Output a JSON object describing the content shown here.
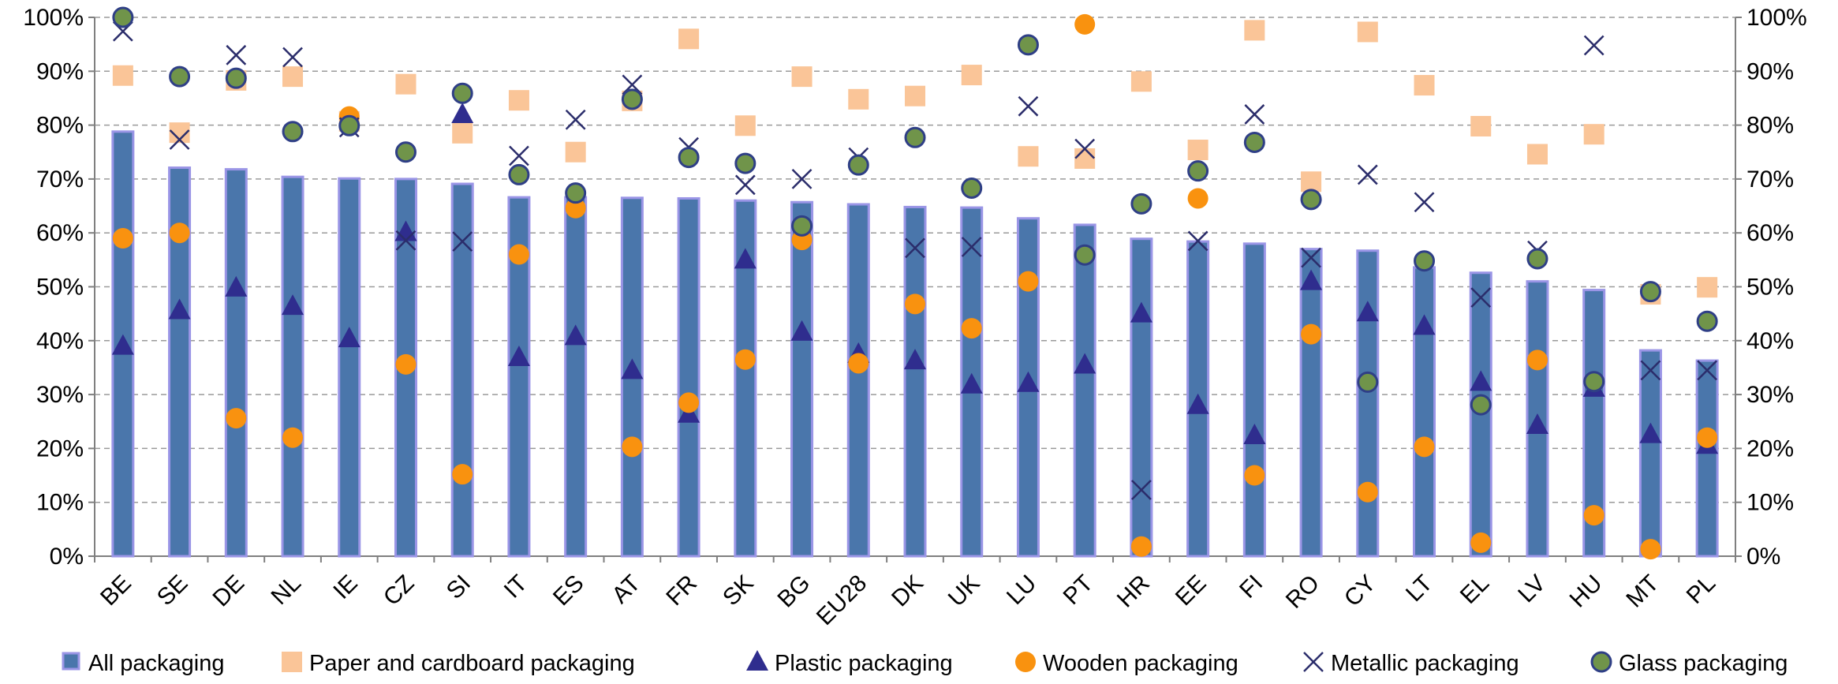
{
  "chart_data": {
    "type": "bar",
    "title": "",
    "xlabel": "",
    "ylabel": "",
    "ylim": [
      0,
      100
    ],
    "y_tick_labels": [
      "0%",
      "10%",
      "20%",
      "30%",
      "40%",
      "50%",
      "60%",
      "70%",
      "80%",
      "90%",
      "100%"
    ],
    "grid": "horizontal dashed",
    "legend_position": "bottom",
    "colors": {
      "all": "#4a76ab",
      "all_edge": "#9a95e6",
      "paper": "#fac598",
      "plastic": "#2f2d8e",
      "wooden": "#f9920f",
      "metallic": "#2b2d6b",
      "glass": "#70944a",
      "glass_edge": "#2f3f86",
      "grid": "#9a9a9a",
      "axis": "#7f7f7f"
    },
    "categories": [
      "BE",
      "SE",
      "DE",
      "NL",
      "IE",
      "CZ",
      "SI",
      "IT",
      "ES",
      "AT",
      "FR",
      "SK",
      "BG",
      "EU28",
      "DK",
      "UK",
      "LU",
      "PT",
      "HR",
      "EE",
      "FI",
      "RO",
      "CY",
      "LT",
      "EL",
      "LV",
      "HU",
      "MT",
      "PL"
    ],
    "series": [
      {
        "name": "All packaging",
        "kind": "bar",
        "values": [
          78.8,
          72.1,
          71.8,
          70.4,
          70.1,
          70.0,
          69.1,
          66.6,
          66.6,
          66.5,
          66.4,
          66.0,
          65.7,
          65.3,
          64.8,
          64.7,
          62.7,
          61.5,
          58.9,
          58.4,
          58.0,
          57.0,
          56.7,
          53.6,
          52.6,
          51.0,
          49.4,
          38.2,
          36.3
        ]
      },
      {
        "name": "Paper and cardboard packaging",
        "kind": "square",
        "values": [
          89.2,
          78.6,
          88.3,
          89.0,
          80.7,
          87.6,
          78.5,
          84.6,
          75.0,
          84.5,
          96.0,
          79.9,
          89.0,
          84.8,
          85.4,
          89.3,
          74.2,
          73.8,
          88.1,
          75.4,
          97.6,
          69.5,
          97.3,
          87.4,
          79.8,
          74.6,
          78.3,
          48.6,
          49.9
        ]
      },
      {
        "name": "Plastic packaging",
        "kind": "triangle",
        "values": [
          39.0,
          45.6,
          49.8,
          46.4,
          40.4,
          60.1,
          82.0,
          36.9,
          40.8,
          34.5,
          26.4,
          55.0,
          41.6,
          37.5,
          36.3,
          31.8,
          32.1,
          35.5,
          45.0,
          28.0,
          22.4,
          51.0,
          45.2,
          42.7,
          32.3,
          24.3,
          31.2,
          22.6,
          20.6
        ]
      },
      {
        "name": "Wooden packaging",
        "kind": "circle",
        "values": [
          59.0,
          60.0,
          25.6,
          22.0,
          81.6,
          35.6,
          15.2,
          56.0,
          64.6,
          20.3,
          28.5,
          36.5,
          58.7,
          35.8,
          46.8,
          42.3,
          51.0,
          98.7,
          1.8,
          66.4,
          15.0,
          41.2,
          11.9,
          20.3,
          2.5,
          36.4,
          7.6,
          1.3,
          22.0
        ]
      },
      {
        "name": "Metallic packaging",
        "kind": "x",
        "values": [
          97.4,
          77.3,
          93.0,
          92.6,
          79.6,
          58.6,
          58.4,
          74.3,
          81.0,
          87.5,
          75.9,
          68.9,
          70.0,
          74.0,
          57.2,
          57.4,
          83.5,
          75.6,
          12.3,
          58.5,
          82.0,
          55.4,
          70.8,
          65.7,
          48.0,
          56.7,
          94.8,
          34.5,
          34.5
        ]
      },
      {
        "name": "Glass packaging",
        "kind": "glass",
        "values": [
          100.0,
          89.0,
          88.7,
          78.8,
          79.9,
          75.0,
          85.9,
          70.8,
          67.4,
          84.8,
          74.0,
          72.9,
          61.3,
          72.6,
          77.7,
          68.3,
          94.9,
          55.9,
          65.4,
          71.5,
          76.8,
          66.2,
          32.3,
          54.8,
          28.1,
          55.2,
          32.4,
          49.1,
          43.6
        ]
      }
    ]
  }
}
